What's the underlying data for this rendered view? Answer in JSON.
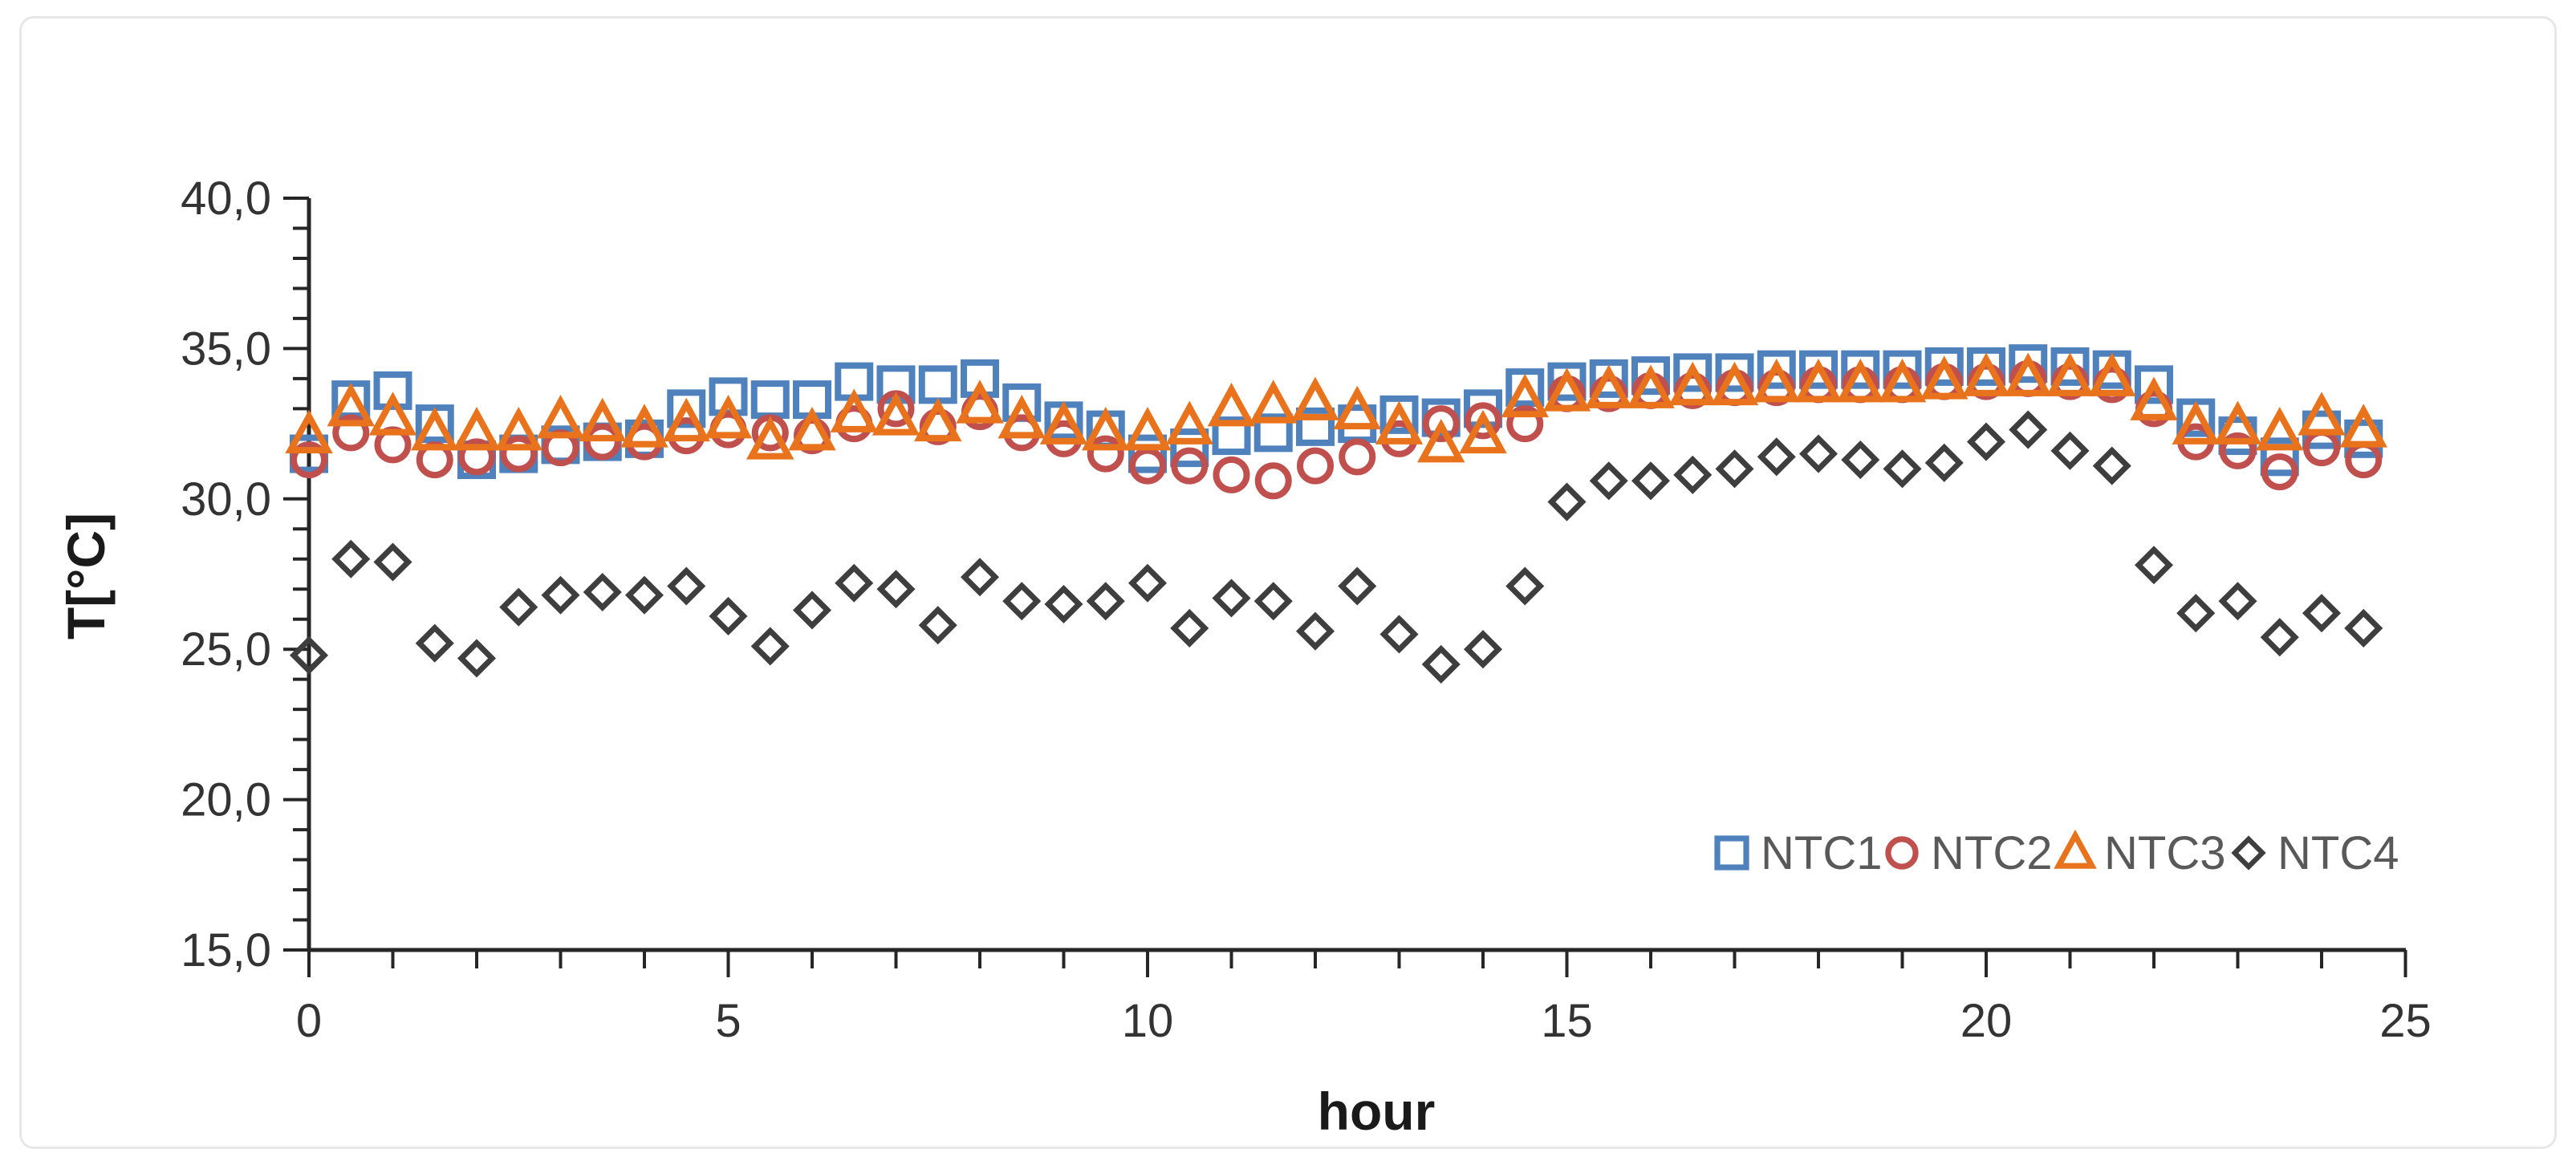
{
  "chart_data": {
    "type": "scatter",
    "title": "",
    "xlabel": "hour",
    "ylabel": "T[°C]",
    "xlim": [
      0,
      25
    ],
    "ylim": [
      15,
      40
    ],
    "grid": false,
    "legend_position": "inside-bottom-right",
    "decimal_separator": ",",
    "x_tick_values": [
      0,
      5,
      10,
      15,
      20,
      25
    ],
    "x_tick_labels": [
      "0",
      "5",
      "10",
      "15",
      "20",
      "25"
    ],
    "x_minor_tick_step": 1,
    "y_tick_values": [
      15,
      20,
      25,
      30,
      35,
      40
    ],
    "y_tick_labels": [
      "15,0",
      "20,0",
      "25,0",
      "30,0",
      "35,0",
      "40,0"
    ],
    "y_minor_tick_step": 1,
    "x": [
      0,
      0.5,
      1,
      1.5,
      2,
      2.5,
      3,
      3.5,
      4,
      4.5,
      5,
      5.5,
      6,
      6.5,
      7,
      7.5,
      8,
      8.5,
      9,
      9.5,
      10,
      10.5,
      11,
      11.5,
      12,
      12.5,
      13,
      13.5,
      14,
      14.5,
      15,
      15.5,
      16,
      16.5,
      17,
      17.5,
      18,
      18.5,
      19,
      19.5,
      20,
      20.5,
      21,
      21.5,
      22,
      22.5,
      23,
      23.5,
      24,
      24.5
    ],
    "series": [
      {
        "name": "NTC1",
        "marker": "square",
        "color": "#4F81BD",
        "values": [
          31.5,
          33.3,
          33.6,
          32.5,
          31.3,
          31.5,
          31.8,
          31.9,
          32.0,
          33.0,
          33.4,
          33.3,
          33.3,
          33.9,
          33.8,
          33.8,
          34.0,
          33.2,
          32.6,
          32.3,
          31.5,
          31.7,
          32.1,
          32.2,
          32.4,
          32.5,
          32.8,
          32.7,
          33.0,
          33.7,
          33.9,
          34.0,
          34.1,
          34.2,
          34.2,
          34.3,
          34.3,
          34.3,
          34.3,
          34.4,
          34.4,
          34.5,
          34.4,
          34.3,
          33.8,
          32.7,
          32.1,
          31.4,
          32.3,
          32.0
        ]
      },
      {
        "name": "NTC2",
        "marker": "circle",
        "color": "#C0504D",
        "values": [
          31.3,
          32.2,
          31.8,
          31.3,
          31.4,
          31.5,
          31.7,
          31.9,
          31.9,
          32.1,
          32.3,
          32.2,
          32.1,
          32.5,
          33.0,
          32.4,
          32.9,
          32.2,
          32.0,
          31.5,
          31.1,
          31.1,
          30.8,
          30.6,
          31.1,
          31.4,
          32.0,
          32.5,
          32.6,
          32.5,
          33.5,
          33.5,
          33.6,
          33.6,
          33.7,
          33.7,
          33.8,
          33.8,
          33.8,
          33.9,
          33.9,
          34.0,
          33.9,
          33.8,
          33.0,
          31.9,
          31.6,
          30.9,
          31.7,
          31.3
        ]
      },
      {
        "name": "NTC3",
        "marker": "triangle",
        "color": "#E8731C",
        "values": [
          32.1,
          33.0,
          32.7,
          32.2,
          32.2,
          32.2,
          32.6,
          32.5,
          32.3,
          32.5,
          32.6,
          31.9,
          32.2,
          32.8,
          32.7,
          32.5,
          33.1,
          32.6,
          32.4,
          32.2,
          32.2,
          32.4,
          33.0,
          33.1,
          33.2,
          32.9,
          32.4,
          31.8,
          32.1,
          33.3,
          33.5,
          33.6,
          33.6,
          33.7,
          33.7,
          33.8,
          33.8,
          33.8,
          33.8,
          33.9,
          34.0,
          34.0,
          34.0,
          34.0,
          33.2,
          32.4,
          32.4,
          32.2,
          32.7,
          32.3
        ]
      },
      {
        "name": "NTC4",
        "marker": "diamond",
        "color": "#3E3E3E",
        "values": [
          24.8,
          28.0,
          27.9,
          25.2,
          24.7,
          26.4,
          26.8,
          26.9,
          26.8,
          27.1,
          26.1,
          25.1,
          26.3,
          27.2,
          27.0,
          25.8,
          27.4,
          26.6,
          26.5,
          26.6,
          27.2,
          25.7,
          26.7,
          26.6,
          25.6,
          27.1,
          25.5,
          24.5,
          25.0,
          27.1,
          29.9,
          30.6,
          30.6,
          30.8,
          31.0,
          31.4,
          31.5,
          31.3,
          31.0,
          31.2,
          31.9,
          32.3,
          31.6,
          31.1,
          27.8,
          26.2,
          26.6,
          25.4,
          26.2,
          25.7
        ]
      }
    ],
    "legend_labels": [
      "NTC1",
      "NTC2",
      "NTC3",
      "NTC4"
    ]
  }
}
